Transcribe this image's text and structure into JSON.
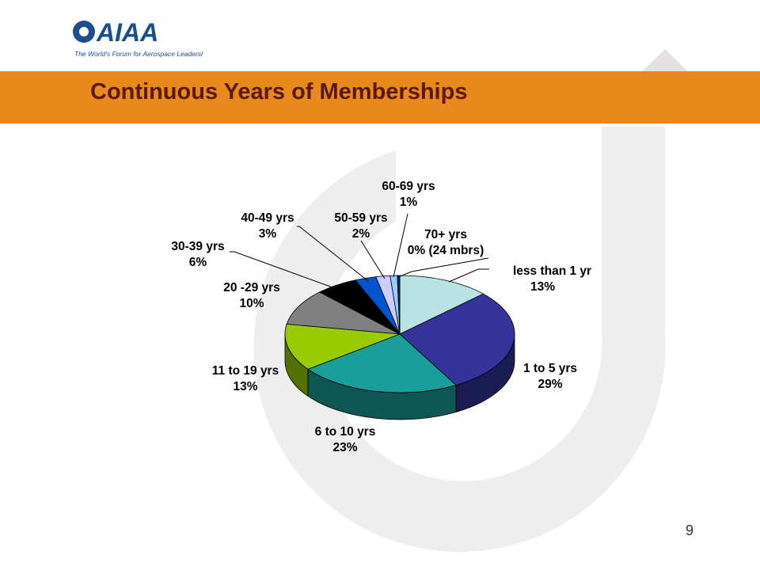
{
  "logo": {
    "wordmark": "AIAA",
    "tagline": "The World's Forum for Aerospace Leadership"
  },
  "title": "Continuous Years of Memberships",
  "page_number": "9",
  "colors": {
    "banner": "#e8891c",
    "title": "#5a1a06",
    "logo_blue": "#1a4f8c",
    "watermark": "#eeeeee"
  },
  "chart_data": {
    "type": "pie",
    "title": "",
    "series": [
      {
        "values": [
          13,
          29,
          23,
          13,
          10,
          6,
          3,
          2,
          1,
          0
        ],
        "labels": [
          "less than 1 yr",
          "1 to 5 yrs",
          "6 to 10 yrs",
          "11 to 19 yrs",
          "20 -29 yrs",
          "30-39 yrs",
          "40-49 yrs",
          "50-59 yrs",
          "60-69 yrs",
          "70+ yrs"
        ],
        "value_labels": [
          "13%",
          "29%",
          "23%",
          "13%",
          "10%",
          "6%",
          "3%",
          "2%",
          "1%",
          "0% (24 mbrs)"
        ],
        "colors": [
          "#b9e3e3",
          "#33339a",
          "#1a9e99",
          "#99cc00",
          "#808080",
          "#000000",
          "#0055cc",
          "#ccccff",
          "#99ccff",
          "#003366"
        ]
      }
    ],
    "style": "3d",
    "legend": "none"
  }
}
